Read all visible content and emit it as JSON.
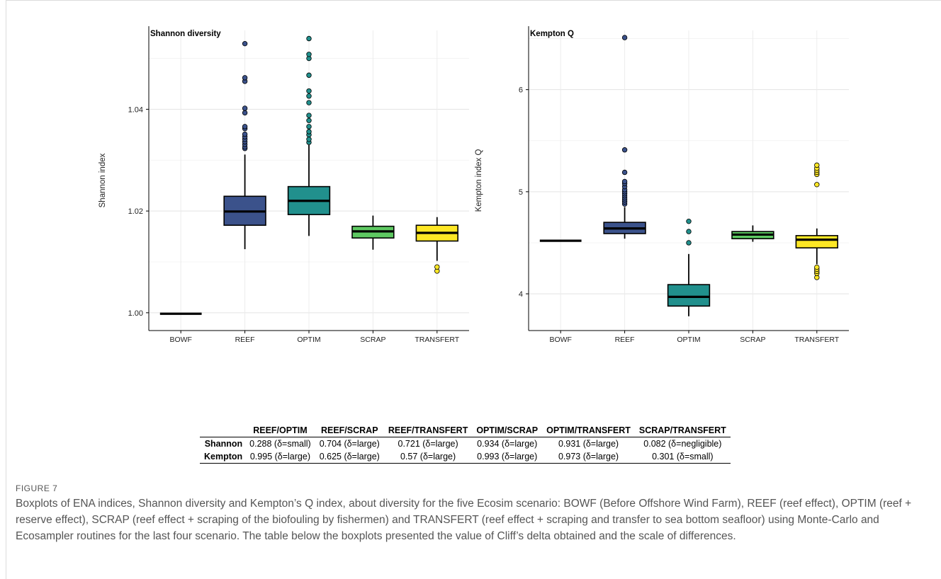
{
  "chart_data": [
    {
      "type": "boxplot",
      "title": "Shannon diversity",
      "xlabel": "",
      "ylabel": "Shannon index",
      "ylim": [
        0.9965,
        1.0555
      ],
      "yticks": [
        "1.00",
        "1.02",
        "1.04"
      ],
      "categories": [
        "BOWF",
        "REEF",
        "OPTIM",
        "SCRAP",
        "TRANSFERT"
      ],
      "colors": [
        "#000000",
        "#3b528b",
        "#21908d",
        "#5ec962",
        "#fde725"
      ],
      "grid": true,
      "boxes": [
        {
          "q1": 0.9998,
          "median": 0.9998,
          "q3": 0.9998,
          "whisker_low": 0.9998,
          "whisker_high": 0.9998,
          "outliers": []
        },
        {
          "q1": 1.0172,
          "median": 1.0199,
          "q3": 1.0229,
          "whisker_low": 1.0125,
          "whisker_high": 1.0311,
          "outliers": [
            1.0323,
            1.0326,
            1.0331,
            1.0336,
            1.0341,
            1.0346,
            1.0351,
            1.0362,
            1.0366,
            1.0393,
            1.0402,
            1.0455,
            1.0462,
            1.0529
          ]
        },
        {
          "q1": 1.0193,
          "median": 1.022,
          "q3": 1.0248,
          "whisker_low": 1.0151,
          "whisker_high": 1.033,
          "outliers": [
            1.0335,
            1.0341,
            1.035,
            1.0356,
            1.0366,
            1.0378,
            1.0388,
            1.0413,
            1.0426,
            1.0436,
            1.0467,
            1.05,
            1.0508,
            1.0539
          ]
        },
        {
          "q1": 1.0147,
          "median": 1.016,
          "q3": 1.017,
          "whisker_low": 1.0124,
          "whisker_high": 1.0191,
          "outliers": []
        },
        {
          "q1": 1.0141,
          "median": 1.0157,
          "q3": 1.0172,
          "whisker_low": 1.0102,
          "whisker_high": 1.0188,
          "outliers": [
            1.0082,
            1.009
          ]
        }
      ]
    },
    {
      "type": "boxplot",
      "title": "Kempton Q",
      "xlabel": "",
      "ylabel": "Kempton index Q",
      "ylim": [
        3.64,
        6.58
      ],
      "yticks": [
        "4",
        "5",
        "6"
      ],
      "categories": [
        "BOWF",
        "REEF",
        "OPTIM",
        "SCRAP",
        "TRANSFERT"
      ],
      "colors": [
        "#000000",
        "#3b528b",
        "#21908d",
        "#5ec962",
        "#fde725"
      ],
      "grid": true,
      "boxes": [
        {
          "q1": 4.52,
          "median": 4.52,
          "q3": 4.52,
          "whisker_low": 4.52,
          "whisker_high": 4.52,
          "outliers": []
        },
        {
          "q1": 4.59,
          "median": 4.64,
          "q3": 4.7,
          "whisker_low": 4.54,
          "whisker_high": 4.85,
          "outliers": [
            4.88,
            4.9,
            4.92,
            4.94,
            4.96,
            4.98,
            5.0,
            5.02,
            5.05,
            5.08,
            5.1,
            5.19,
            5.41,
            6.51
          ]
        },
        {
          "q1": 3.88,
          "median": 3.97,
          "q3": 4.09,
          "whisker_low": 3.78,
          "whisker_high": 4.39,
          "outliers": [
            4.5,
            4.61,
            4.71
          ]
        },
        {
          "q1": 4.54,
          "median": 4.58,
          "q3": 4.61,
          "whisker_low": 4.51,
          "whisker_high": 4.67,
          "outliers": []
        },
        {
          "q1": 4.45,
          "median": 4.53,
          "q3": 4.57,
          "whisker_low": 4.29,
          "whisker_high": 4.64,
          "outliers": [
            4.16,
            4.2,
            4.22,
            4.24,
            4.26,
            5.07,
            5.17,
            5.19,
            5.21,
            5.23,
            5.26
          ]
        }
      ]
    }
  ],
  "table": {
    "headers": [
      "",
      "REEF/OPTIM",
      "REEF/SCRAP",
      "REEF/TRANSFERT",
      "OPTIM/SCRAP",
      "OPTIM/TRANSFERT",
      "SCRAP/TRANSFERT"
    ],
    "rows": [
      {
        "label": "Shannon",
        "cells": [
          "0.288 (δ=small)",
          "0.704 (δ=large)",
          "0.721 (δ=large)",
          "0.934 (δ=large)",
          "0.931 (δ=large)",
          "0.082 (δ=negligible)"
        ]
      },
      {
        "label": "Kempton",
        "cells": [
          "0.995 (δ=large)",
          "0.625 (δ=large)",
          "0.57 (δ=large)",
          "0.993 (δ=large)",
          "0.973 (δ=large)",
          "0.301 (δ=small)"
        ]
      }
    ]
  },
  "caption": {
    "label": "FIGURE 7",
    "text": "Boxplots of ENA indices, Shannon diversity and Kempton’s Q index, about diversity for the five Ecosim scenario: BOWF (Before Offshore Wind Farm), REEF (reef effect), OPTIM (reef + reserve effect), SCRAP (reef effect + scraping of the biofouling by fishermen) and TRANSFERT (reef effect + scraping and transfer to sea bottom seafloor) using Monte-Carlo and Ecosampler routines for the last four scenario. The table below the boxplots presented the value of Cliff’s delta obtained and the scale of differences."
  }
}
